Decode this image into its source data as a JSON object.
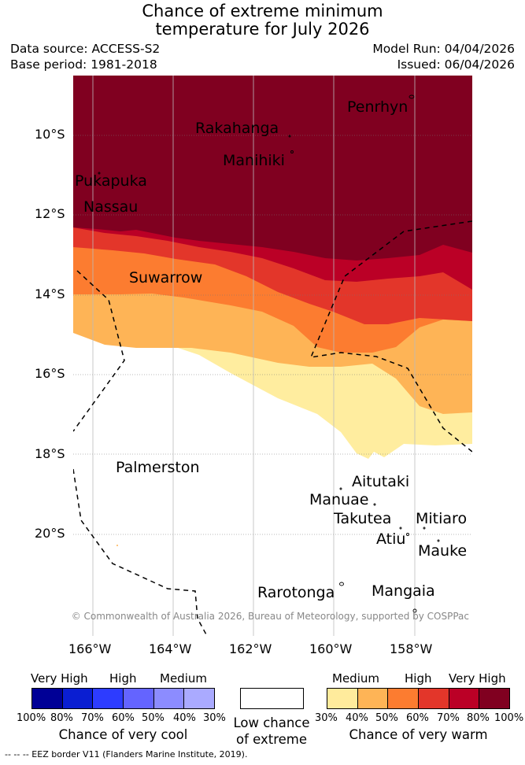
{
  "title": {
    "line1": "Chance of extreme minimum",
    "line2": "temperature for July 2026"
  },
  "meta": {
    "data_source": "Data source: ACCESS-S2",
    "base_period": "Base period: 1981-2018",
    "model_run": "Model Run: 04/04/2026",
    "issued": "Issued: 06/04/2026"
  },
  "map": {
    "lat_ticks": [
      "10°S",
      "12°S",
      "14°S",
      "16°S",
      "18°S",
      "20°S"
    ],
    "lon_ticks": [
      "166°W",
      "164°W",
      "162°W",
      "160°W",
      "158°W"
    ],
    "places": {
      "penrhyn": "Penrhyn",
      "rakahanga": "Rakahanga",
      "manihiki": "Manihiki",
      "pukapuka": "Pukapuka",
      "nassau": "Nassau",
      "suwarrow": "Suwarrow",
      "palmerston": "Palmerston",
      "aitutaki": "Aitutaki",
      "manuae": "Manuae",
      "takutea": "Takutea",
      "mitiaro": "Mitiaro",
      "atiu": "Atiu",
      "mauke": "Mauke",
      "rarotonga": "Rarotonga",
      "mangaia": "Mangaia"
    },
    "copyright": "© Commonwealth of Australia 2026, Bureau of Meteorology, supported by COSPPac",
    "colors": {
      "very_high_warm": "#800020",
      "high_80": "#bb0026",
      "c_70": "#e3362a",
      "c_60": "#fc7c30",
      "c_50": "#feb456",
      "c_40": "#ffed9f",
      "low": "#ffffff"
    }
  },
  "legend": {
    "cool": {
      "levels": [
        "Very High",
        "High",
        "Medium"
      ],
      "percents": [
        "100%",
        "80%",
        "70%",
        "60%",
        "50%",
        "40%",
        "30%"
      ],
      "colors": [
        "#000096",
        "#0a1ed2",
        "#2d3cff",
        "#6464ff",
        "#8c8cff",
        "#aaaaff"
      ],
      "label": "Chance of very cool"
    },
    "neutral": {
      "line1": "Low chance",
      "line2": "of extreme"
    },
    "warm": {
      "levels": [
        "Medium",
        "High",
        "Very High"
      ],
      "percents": [
        "30%",
        "40%",
        "50%",
        "60%",
        "70%",
        "80%",
        "100%"
      ],
      "colors": [
        "#ffeb9c",
        "#feb456",
        "#fc7c30",
        "#e3362a",
        "#bb0026",
        "#800020"
      ],
      "label": "Chance of very warm"
    }
  },
  "footer": {
    "eez": "--  --  -- EEZ border V11 (Flanders Marine Institute, 2019)."
  }
}
